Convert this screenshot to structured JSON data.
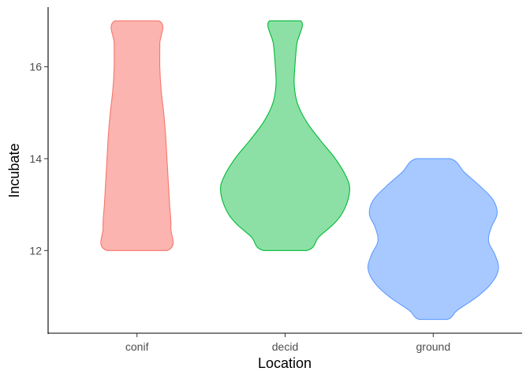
{
  "chart_data": {
    "type": "violin",
    "xlabel": "Location",
    "ylabel": "Incubate",
    "categories": [
      "conif",
      "decid",
      "ground"
    ],
    "ylim": [
      10.2,
      17.3
    ],
    "yticks": [
      12,
      14,
      16
    ],
    "grid": false,
    "legend": "none",
    "series": [
      {
        "category": "conif",
        "fill": "#F8766D",
        "fill_opacity": 0.55,
        "stroke": "#F8766D",
        "range": [
          12,
          17
        ],
        "density": [
          [
            12.0,
            0.46
          ],
          [
            12.5,
            0.52
          ],
          [
            13.0,
            0.5
          ],
          [
            13.5,
            0.48
          ],
          [
            14.0,
            0.46
          ],
          [
            14.5,
            0.44
          ],
          [
            15.0,
            0.41
          ],
          [
            15.5,
            0.37
          ],
          [
            16.0,
            0.35
          ],
          [
            16.5,
            0.35
          ],
          [
            17.0,
            0.34
          ]
        ]
      },
      {
        "category": "decid",
        "fill": "#00BA38",
        "fill_opacity": 0.45,
        "stroke": "#00BA38",
        "range": [
          12,
          17
        ],
        "density": [
          [
            12.0,
            0.33
          ],
          [
            12.3,
            0.52
          ],
          [
            12.6,
            0.76
          ],
          [
            12.9,
            0.91
          ],
          [
            13.3,
            0.99
          ],
          [
            13.6,
            0.94
          ],
          [
            14.0,
            0.77
          ],
          [
            14.4,
            0.54
          ],
          [
            14.8,
            0.33
          ],
          [
            15.2,
            0.19
          ],
          [
            15.6,
            0.14
          ],
          [
            16.0,
            0.15
          ],
          [
            16.5,
            0.18
          ],
          [
            17.0,
            0.24
          ]
        ]
      },
      {
        "category": "ground",
        "fill": "#619CFF",
        "fill_opacity": 0.55,
        "stroke": "#619CFF",
        "range": [
          10.5,
          14
        ],
        "density": [
          [
            10.5,
            0.21
          ],
          [
            10.7,
            0.37
          ],
          [
            11.0,
            0.68
          ],
          [
            11.3,
            0.9
          ],
          [
            11.6,
            1.0
          ],
          [
            11.9,
            0.95
          ],
          [
            12.2,
            0.85
          ],
          [
            12.5,
            0.89
          ],
          [
            12.8,
            0.98
          ],
          [
            13.1,
            0.92
          ],
          [
            13.4,
            0.72
          ],
          [
            13.7,
            0.48
          ],
          [
            14.0,
            0.26
          ]
        ]
      }
    ]
  }
}
